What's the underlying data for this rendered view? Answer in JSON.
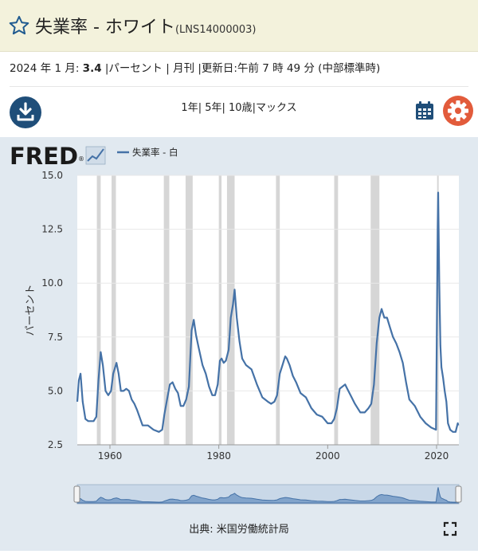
{
  "header": {
    "title": "失業率 - ホワイト",
    "series_code": "(LNS14000003)"
  },
  "info": {
    "date_prefix": "2024 年 1 月: ",
    "value": "3.4",
    "details": " |パーセント | 月刊 |更新日:午前 7 時 49 分 (中部標準時)"
  },
  "toolbar": {
    "ranges": [
      "1年",
      "5年",
      "10歳",
      "マックス"
    ]
  },
  "brand": {
    "logo_text": "FRED",
    "logo_mark": "®"
  },
  "footer": {
    "source": "出典: 米国労働統計局"
  },
  "colors": {
    "line": "#4572a7",
    "recession": "#d6d6d6",
    "plot_bg": "#ffffff",
    "outer_bg": "#e1e9f0"
  },
  "chart_data": {
    "type": "line",
    "legend": "失業率 - 白",
    "ylabel": "パーセント",
    "xlabel": "",
    "ylim": [
      2.5,
      15.0
    ],
    "xlim": [
      1954.0,
      2024.1
    ],
    "yticks": [
      "2.5",
      "5.0",
      "7.5",
      "10.0",
      "12.5",
      "15.0"
    ],
    "xticks": [
      "1960",
      "1980",
      "2000",
      "2020"
    ],
    "recessions": [
      [
        1957.6,
        1958.3
      ],
      [
        1960.3,
        1961.1
      ],
      [
        1969.9,
        1970.9
      ],
      [
        1973.9,
        1975.2
      ],
      [
        1980.0,
        1980.5
      ],
      [
        1981.5,
        1982.9
      ],
      [
        1990.5,
        1991.2
      ],
      [
        2001.2,
        2001.9
      ],
      [
        2007.9,
        2009.5
      ],
      [
        2020.1,
        2020.3
      ]
    ],
    "x": [
      1954.0,
      1954.3,
      1954.6,
      1955.0,
      1955.5,
      1956.0,
      1956.5,
      1957.0,
      1957.5,
      1957.9,
      1958.3,
      1958.7,
      1959.2,
      1959.7,
      1960.2,
      1960.6,
      1961.2,
      1961.6,
      1962.0,
      1962.5,
      1963.0,
      1963.5,
      1964.0,
      1964.5,
      1965.0,
      1966.0,
      1967.0,
      1968.0,
      1969.0,
      1969.6,
      1970.0,
      1970.5,
      1971.0,
      1971.5,
      1972.0,
      1972.5,
      1973.0,
      1973.5,
      1974.0,
      1974.5,
      1975.0,
      1975.4,
      1975.8,
      1976.3,
      1977.0,
      1977.6,
      1978.2,
      1978.8,
      1979.3,
      1979.8,
      1980.2,
      1980.5,
      1980.9,
      1981.3,
      1981.8,
      1982.2,
      1982.6,
      1982.9,
      1983.3,
      1983.8,
      1984.3,
      1985.0,
      1986.0,
      1987.0,
      1988.0,
      1989.0,
      1989.6,
      1990.2,
      1990.7,
      1991.2,
      1991.7,
      1992.2,
      1992.5,
      1993.0,
      1993.6,
      1994.2,
      1995.0,
      1996.0,
      1997.0,
      1998.0,
      1999.0,
      2000.0,
      2000.7,
      2001.2,
      2001.7,
      2002.2,
      2002.7,
      2003.2,
      2003.6,
      2004.2,
      2005.0,
      2006.0,
      2006.8,
      2007.5,
      2008.0,
      2008.5,
      2009.0,
      2009.5,
      2009.9,
      2010.4,
      2010.9,
      2011.5,
      2012.0,
      2012.6,
      2013.2,
      2013.8,
      2014.4,
      2015.0,
      2016.0,
      2017.0,
      2018.0,
      2019.0,
      2019.9,
      2020.2,
      2020.3,
      2020.5,
      2020.7,
      2020.9,
      2021.2,
      2021.5,
      2021.8,
      2022.1,
      2022.5,
      2023.0,
      2023.5,
      2023.9,
      2024.0
    ],
    "y": [
      4.5,
      5.5,
      5.8,
      4.5,
      3.7,
      3.6,
      3.6,
      3.6,
      3.8,
      5.5,
      6.8,
      6.2,
      5.0,
      4.8,
      5.0,
      5.8,
      6.3,
      5.8,
      5.0,
      5.0,
      5.1,
      5.0,
      4.6,
      4.4,
      4.1,
      3.4,
      3.4,
      3.2,
      3.1,
      3.2,
      3.9,
      4.6,
      5.3,
      5.4,
      5.1,
      4.9,
      4.3,
      4.3,
      4.6,
      5.2,
      7.8,
      8.3,
      7.6,
      7.0,
      6.2,
      5.8,
      5.2,
      4.8,
      4.8,
      5.3,
      6.4,
      6.5,
      6.3,
      6.4,
      6.9,
      8.4,
      9.0,
      9.7,
      8.4,
      7.3,
      6.5,
      6.2,
      6.0,
      5.3,
      4.7,
      4.5,
      4.4,
      4.5,
      4.8,
      5.8,
      6.2,
      6.6,
      6.5,
      6.2,
      5.7,
      5.4,
      4.9,
      4.7,
      4.2,
      3.9,
      3.8,
      3.5,
      3.5,
      3.7,
      4.2,
      5.1,
      5.2,
      5.3,
      5.1,
      4.8,
      4.4,
      4.0,
      4.0,
      4.2,
      4.4,
      5.3,
      7.2,
      8.4,
      8.8,
      8.4,
      8.4,
      7.9,
      7.5,
      7.2,
      6.8,
      6.3,
      5.4,
      4.6,
      4.3,
      3.8,
      3.5,
      3.3,
      3.2,
      12.6,
      14.2,
      10.0,
      7.1,
      6.1,
      5.6,
      5.0,
      4.5,
      3.5,
      3.2,
      3.1,
      3.1,
      3.5,
      3.4
    ]
  }
}
